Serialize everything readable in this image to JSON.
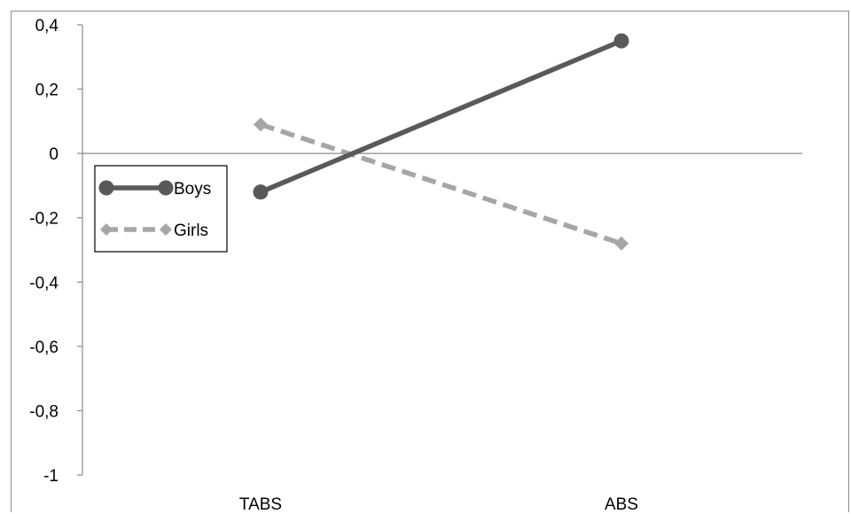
{
  "chart_data": {
    "type": "line",
    "categories": [
      "TABS",
      "ABS"
    ],
    "series": [
      {
        "name": "Boys",
        "values": [
          -0.12,
          0.35
        ],
        "color": "#595959",
        "dash": "solid",
        "marker": "circle"
      },
      {
        "name": "Girls",
        "values": [
          0.09,
          -0.28
        ],
        "color": "#a6a6a6",
        "dash": "dashed",
        "marker": "diamond"
      }
    ],
    "ylim": [
      -1,
      0.4
    ],
    "yticks": [
      0.4,
      0.2,
      0,
      -0.2,
      -0.4,
      -0.6,
      -0.8,
      -1
    ],
    "ytick_labels": [
      "0,4",
      "0,2",
      "0",
      "-0,2",
      "-0,4",
      "-0,6",
      "-0,8",
      "-1"
    ],
    "title": "",
    "xlabel": "",
    "ylabel": "",
    "grid": false,
    "legend_position": "left, inside plot"
  }
}
